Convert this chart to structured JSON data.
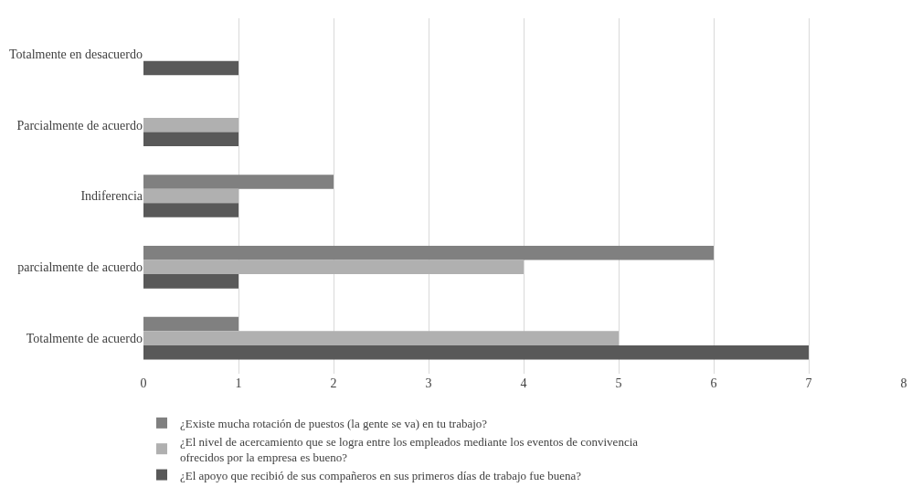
{
  "chart_data": {
    "type": "bar",
    "orientation": "horizontal",
    "categories": [
      "Totalmente en desacuerdo",
      "Parcialmente de acuerdo",
      "Indiferencia",
      "parcialmente de acuerdo",
      "Totalmente de acuerdo"
    ],
    "series": [
      {
        "name": "¿Existe mucha rotación de puestos (la gente se va) en tu trabajo?",
        "color": "#808080",
        "values": [
          0,
          0,
          2,
          6,
          1
        ]
      },
      {
        "name": "¿El nivel de acercamiento que se logra entre los empleados mediante los eventos de convivencia ofrecidos por la empresa es bueno?",
        "color": "#b0b0b0",
        "values": [
          0,
          1,
          1,
          4,
          5
        ]
      },
      {
        "name": "¿El apoyo que recibió de sus compañeros en sus primeros días de trabajo fue buena?",
        "color": "#595959",
        "values": [
          1,
          1,
          1,
          1,
          7
        ]
      }
    ],
    "xlim": [
      0,
      8
    ],
    "xticks": [
      0,
      1,
      2,
      3,
      4,
      5,
      6,
      7,
      8
    ],
    "grid": "x",
    "legend": "bottom"
  }
}
